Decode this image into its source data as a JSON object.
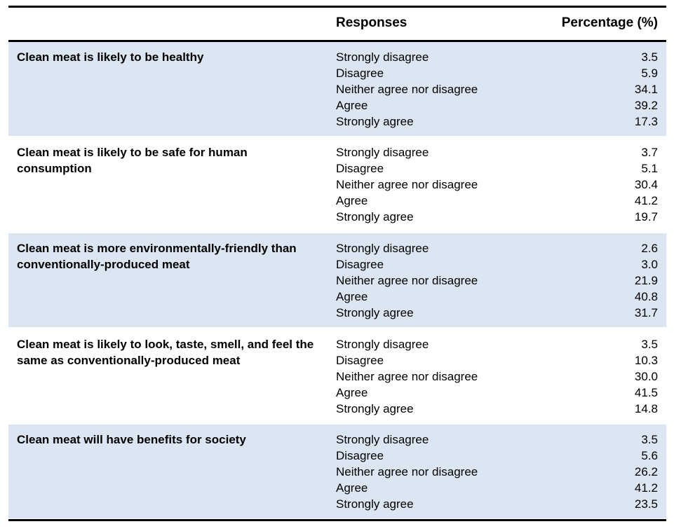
{
  "header": {
    "responses": "Responses",
    "percentage": "Percentage (%)"
  },
  "rows": [
    {
      "statement": "Clean meat is likely to be healthy",
      "responses": [
        "Strongly disagree",
        "Disagree",
        "Neither agree nor disagree",
        "Agree",
        "Strongly agree"
      ],
      "percentages": [
        "3.5",
        "5.9",
        "34.1",
        "39.2",
        "17.3"
      ]
    },
    {
      "statement": "Clean meat is likely to be safe for human consumption",
      "responses": [
        "Strongly disagree",
        "Disagree",
        "Neither agree nor disagree",
        "Agree",
        "Strongly agree"
      ],
      "percentages": [
        "3.7",
        "5.1",
        "30.4",
        "41.2",
        "19.7"
      ]
    },
    {
      "statement": "Clean meat is more environmentally-friendly than conventionally-produced meat",
      "responses": [
        "Strongly disagree",
        "Disagree",
        "Neither agree nor disagree",
        "Agree",
        "Strongly agree"
      ],
      "percentages": [
        "2.6",
        "3.0",
        "21.9",
        "40.8",
        "31.7"
      ]
    },
    {
      "statement": "Clean meat is likely to look, taste, smell, and feel the same as conventionally-produced meat",
      "responses": [
        "Strongly disagree",
        "Disagree",
        "Neither agree nor disagree",
        "Agree",
        "Strongly agree"
      ],
      "percentages": [
        "3.5",
        "10.3",
        "30.0",
        "41.5",
        "14.8"
      ]
    },
    {
      "statement": "Clean meat will have benefits for society",
      "responses": [
        "Strongly disagree",
        "Disagree",
        "Neither agree nor disagree",
        "Agree",
        "Strongly agree"
      ],
      "percentages": [
        "3.5",
        "5.6",
        "26.2",
        "41.2",
        "23.5"
      ]
    }
  ],
  "colors": {
    "row_shade": "#dce6f2"
  }
}
